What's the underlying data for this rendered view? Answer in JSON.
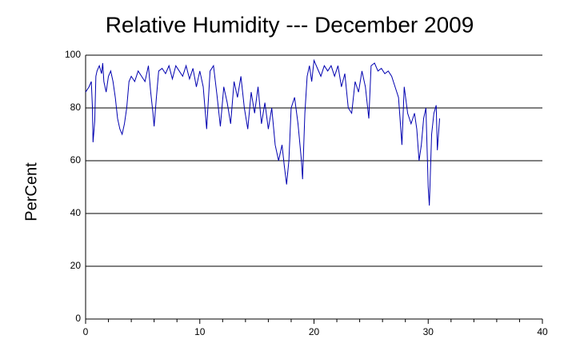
{
  "chart_data": {
    "type": "line",
    "title": "Relative Humidity --- December 2009",
    "ylabel": "PerCent",
    "x": [
      0,
      0.3,
      0.5,
      0.6,
      0.65,
      0.8,
      0.9,
      1.0,
      1.2,
      1.4,
      1.5,
      1.6,
      1.8,
      2.0,
      2.2,
      2.4,
      2.6,
      2.8,
      3.0,
      3.2,
      3.4,
      3.6,
      3.8,
      4.0,
      4.3,
      4.6,
      4.9,
      5.2,
      5.5,
      5.7,
      5.9,
      6.0,
      6.2,
      6.4,
      6.7,
      7.0,
      7.3,
      7.6,
      7.9,
      8.2,
      8.5,
      8.8,
      9.1,
      9.4,
      9.7,
      10.0,
      10.3,
      10.6,
      10.9,
      11.2,
      11.5,
      11.8,
      12.1,
      12.4,
      12.7,
      13.0,
      13.3,
      13.6,
      13.9,
      14.2,
      14.5,
      14.8,
      15.1,
      15.4,
      15.7,
      16.0,
      16.3,
      16.6,
      16.9,
      17.2,
      17.4,
      17.6,
      17.8,
      18.0,
      18.3,
      18.6,
      18.9,
      19.0,
      19.2,
      19.4,
      19.6,
      19.8,
      20.0,
      20.3,
      20.6,
      20.9,
      21.2,
      21.5,
      21.8,
      22.1,
      22.4,
      22.7,
      23.0,
      23.3,
      23.6,
      23.9,
      24.2,
      24.5,
      24.8,
      25.0,
      25.3,
      25.6,
      25.9,
      26.2,
      26.5,
      26.8,
      27.1,
      27.4,
      27.7,
      27.9,
      28.2,
      28.5,
      28.8,
      29.0,
      29.2,
      29.4,
      29.6,
      29.8,
      30.0,
      30.1,
      30.3,
      30.5,
      30.7,
      30.8,
      31.0
    ],
    "series": [
      {
        "name": "Relative Humidity",
        "color": "#0000b0",
        "values": [
          86,
          88,
          90,
          80,
          67,
          75,
          92,
          94,
          96,
          93,
          97,
          90,
          86,
          92,
          94,
          90,
          84,
          76,
          72,
          70,
          74,
          80,
          90,
          92,
          90,
          94,
          92,
          90,
          96,
          86,
          78,
          73,
          84,
          94,
          95,
          93,
          96,
          91,
          96,
          94,
          92,
          96,
          91,
          95,
          88,
          94,
          88,
          72,
          94,
          96,
          85,
          73,
          88,
          82,
          74,
          90,
          84,
          92,
          80,
          72,
          86,
          78,
          88,
          74,
          82,
          72,
          80,
          66,
          60,
          66,
          58,
          51,
          60,
          80,
          84,
          74,
          60,
          53,
          78,
          92,
          96,
          90,
          98,
          95,
          92,
          96,
          94,
          96,
          92,
          96,
          88,
          93,
          80,
          78,
          90,
          86,
          94,
          88,
          76,
          96,
          97,
          94,
          95,
          93,
          94,
          92,
          88,
          84,
          66,
          88,
          78,
          74,
          78,
          72,
          60,
          66,
          76,
          80,
          50,
          43,
          70,
          78,
          81,
          64,
          76
        ]
      }
    ],
    "xlim": [
      0,
      40
    ],
    "xticks": [
      0,
      10,
      20,
      30,
      40
    ],
    "xminorticks": [
      2,
      4,
      6,
      8,
      12,
      14,
      16,
      18,
      22,
      24,
      26,
      28,
      32,
      34,
      36,
      38
    ],
    "ylim": [
      0,
      100
    ],
    "yticks": [
      0,
      20,
      40,
      60,
      80,
      100
    ],
    "grid": true
  }
}
